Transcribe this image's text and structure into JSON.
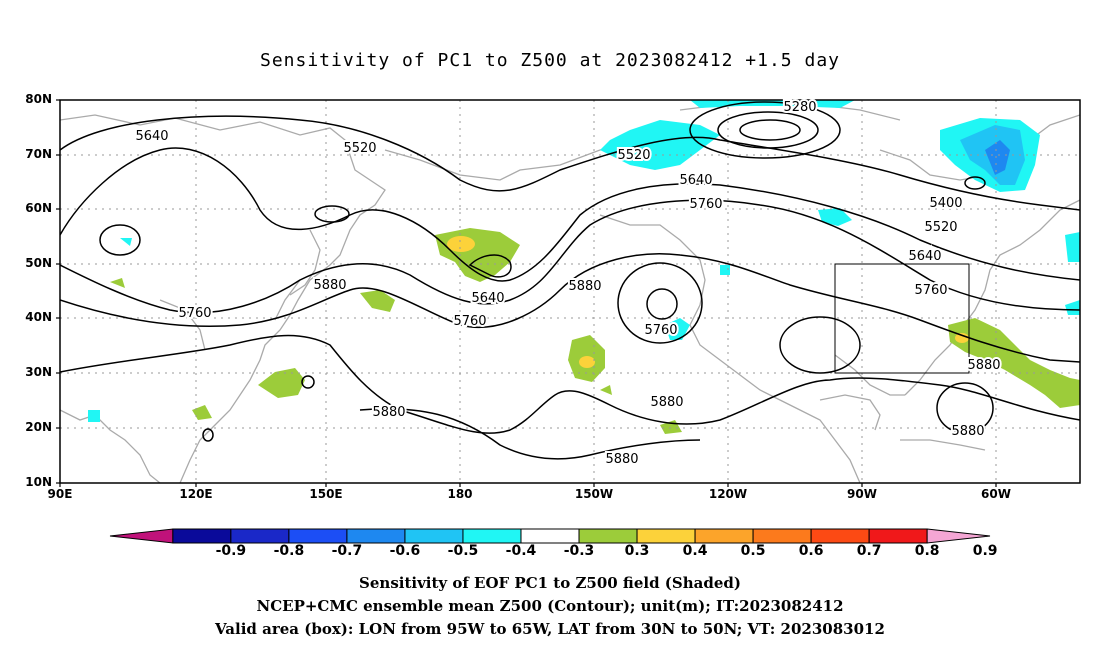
{
  "title": "Sensitivity of PC1 to Z500 at 2023082412 +1.5 day",
  "axes": {
    "lat_labels": [
      "80N",
      "70N",
      "60N",
      "50N",
      "40N",
      "30N",
      "20N",
      "10N"
    ],
    "lon_labels": [
      "90E",
      "120E",
      "150E",
      "180",
      "150W",
      "120W",
      "90W",
      "60W"
    ]
  },
  "contour_labels": [
    {
      "text": "5640"
    },
    {
      "text": "5520"
    },
    {
      "text": "5520"
    },
    {
      "text": "5280"
    },
    {
      "text": "5640"
    },
    {
      "text": "5760"
    },
    {
      "text": "5400"
    },
    {
      "text": "5520"
    },
    {
      "text": "5640"
    },
    {
      "text": "5760"
    },
    {
      "text": "5880"
    },
    {
      "text": "5760"
    },
    {
      "text": "5880"
    },
    {
      "text": "5640"
    },
    {
      "text": "5760"
    },
    {
      "text": "5880"
    },
    {
      "text": "5760"
    },
    {
      "text": "5880"
    },
    {
      "text": "5880"
    },
    {
      "text": "5880"
    },
    {
      "text": "5880"
    }
  ],
  "colorbar": {
    "ticks": [
      "-0.9",
      "-0.8",
      "-0.7",
      "-0.6",
      "-0.5",
      "-0.4",
      "-0.3",
      "0.3",
      "0.4",
      "0.5",
      "0.6",
      "0.7",
      "0.8",
      "0.9"
    ],
    "colors": [
      "#c0127a",
      "#0a0a9a",
      "#1a28c8",
      "#1c4ef5",
      "#1e88f0",
      "#20c4f4",
      "#20f6f4",
      "#ffffff",
      "#9ccc3a",
      "#fcd23a",
      "#fca42a",
      "#fc7a1c",
      "#fc4a14",
      "#f0181a",
      "#f4a6d4"
    ]
  },
  "captions": [
    "Sensitivity of EOF PC1 to Z500 field (Shaded)",
    "NCEP+CMC ensemble mean Z500 (Contour); unit(m); IT:2023082412",
    "Valid area (box): LON from 95W to 65W, LAT from 30N to 50N; VT: 2023083012"
  ]
}
